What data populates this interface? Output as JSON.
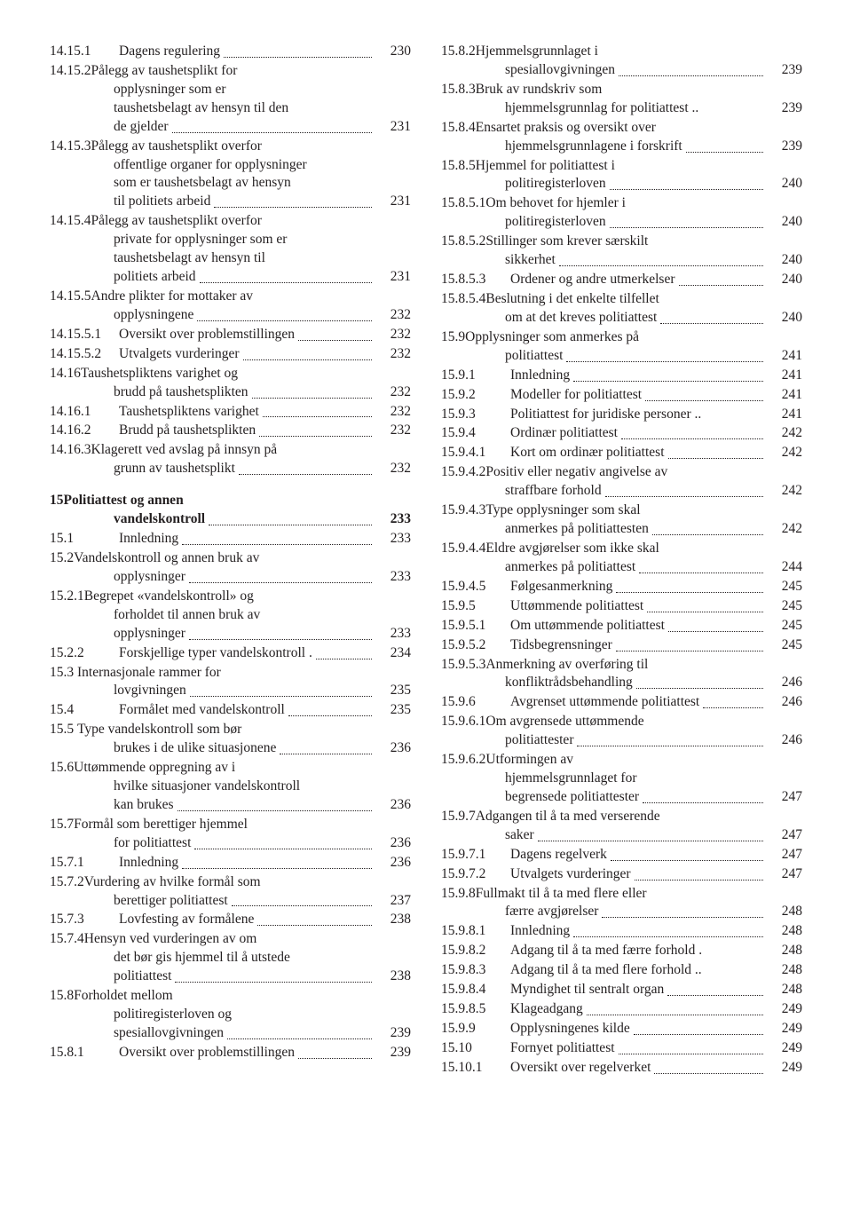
{
  "left": [
    {
      "n": "14.15.1",
      "t": "Dagens regulering",
      "p": "230"
    },
    {
      "n": "14.15.2",
      "lines": [
        "Pålegg av taushetsplikt for",
        "opplysninger som er",
        "taushetsbelagt av hensyn til den"
      ],
      "t": "de gjelder",
      "p": "231"
    },
    {
      "n": "14.15.3",
      "lines": [
        "Pålegg av taushetsplikt overfor",
        "offentlige organer for opplysninger",
        "som er taushetsbelagt av hensyn"
      ],
      "t": "til politiets arbeid",
      "p": "231"
    },
    {
      "n": "14.15.4",
      "lines": [
        "Pålegg av taushetsplikt overfor",
        "private for opplysninger som er",
        "taushetsbelagt av hensyn til"
      ],
      "t": "politiets arbeid",
      "p": "231"
    },
    {
      "n": "14.15.5",
      "lines": [
        "Andre plikter for mottaker av"
      ],
      "t": "opplysningene",
      "p": "232"
    },
    {
      "n": "14.15.5.1",
      "t": "Oversikt over problemstillingen",
      "p": "232",
      "tight": true
    },
    {
      "n": "14.15.5.2",
      "t": "Utvalgets vurderinger",
      "p": "232",
      "tight": true
    },
    {
      "n": "14.16",
      "lines": [
        "Taushetspliktens varighet og"
      ],
      "t": "brudd på taushetsplikten",
      "p": "232"
    },
    {
      "n": "14.16.1",
      "t": "Taushetspliktens varighet",
      "p": "232"
    },
    {
      "n": "14.16.2",
      "t": "Brudd på taushetsplikten",
      "p": "232"
    },
    {
      "n": "14.16.3",
      "lines": [
        "Klagerett ved avslag på innsyn på"
      ],
      "t": "grunn av taushetsplikt",
      "p": "232"
    },
    {
      "spacer": true
    },
    {
      "n": "15",
      "lines": [
        "Politiattest og annen"
      ],
      "t": "vandelskontroll",
      "p": "233",
      "bold": true
    },
    {
      "n": "15.1",
      "t": "Innledning",
      "p": "233"
    },
    {
      "n": "15.2",
      "lines": [
        "Vandelskontroll og annen bruk av"
      ],
      "t": "opplysninger",
      "p": "233"
    },
    {
      "n": "15.2.1",
      "lines": [
        "Begrepet «vandelskontroll» og",
        "forholdet til annen bruk av"
      ],
      "t": "opplysninger",
      "p": "233"
    },
    {
      "n": "15.2.2",
      "t": "Forskjellige typer vandelskontroll .",
      "p": "234"
    },
    {
      "n": "15.3",
      "lines": [
        " Internasjonale rammer for"
      ],
      "t": "lovgivningen",
      "p": "235"
    },
    {
      "n": "15.4",
      "t": "Formålet med vandelskontroll",
      "p": "235"
    },
    {
      "n": "15.5",
      "lines": [
        " Type vandelskontroll som bør"
      ],
      "t": "brukes i de ulike situasjonene",
      "p": "236"
    },
    {
      "n": "15.6",
      "lines": [
        "Uttømmende oppregning av i",
        "hvilke situasjoner vandelskontroll"
      ],
      "t": "kan brukes",
      "p": "236"
    },
    {
      "n": "15.7",
      "lines": [
        "Formål som berettiger hjemmel"
      ],
      "t": "for politiattest",
      "p": "236"
    },
    {
      "n": "15.7.1",
      "t": "Innledning",
      "p": "236"
    },
    {
      "n": "15.7.2",
      "lines": [
        "Vurdering av hvilke formål som"
      ],
      "t": "berettiger politiattest",
      "p": "237"
    },
    {
      "n": "15.7.3",
      "t": "Lovfesting av formålene",
      "p": "238"
    },
    {
      "n": "15.7.4",
      "lines": [
        "Hensyn ved vurderingen av om",
        "det bør gis hjemmel til å utstede"
      ],
      "t": "politiattest",
      "p": "238"
    },
    {
      "n": "15.8",
      "lines": [
        "Forholdet mellom",
        "politiregisterloven og"
      ],
      "t": "spesiallovgivningen",
      "p": "239"
    },
    {
      "n": "15.8.1",
      "t": "Oversikt over problemstillingen",
      "p": "239"
    }
  ],
  "right": [
    {
      "n": "15.8.2",
      "lines": [
        "Hjemmelsgrunnlaget i"
      ],
      "t": "spesiallovgivningen",
      "p": "239"
    },
    {
      "n": "15.8.3",
      "lines": [
        "Bruk av rundskriv som"
      ],
      "t": "hjemmelsgrunnlag for politiattest ..",
      "p": "239",
      "noleaders": true
    },
    {
      "n": "15.8.4",
      "lines": [
        "Ensartet praksis og oversikt over"
      ],
      "t": "hjemmelsgrunnlagene i forskrift",
      "p": "239"
    },
    {
      "n": "15.8.5",
      "lines": [
        "Hjemmel for politiattest i"
      ],
      "t": "politiregisterloven",
      "p": "240"
    },
    {
      "n": "15.8.5.1",
      "lines": [
        "Om behovet for hjemler i"
      ],
      "t": "politiregisterloven",
      "p": "240"
    },
    {
      "n": "15.8.5.2",
      "lines": [
        "Stillinger som krever særskilt"
      ],
      "t": "sikkerhet",
      "p": "240"
    },
    {
      "n": "15.8.5.3",
      "t": "Ordener og andre utmerkelser",
      "p": "240"
    },
    {
      "n": "15.8.5.4",
      "lines": [
        "Beslutning i det enkelte tilfellet"
      ],
      "t": "om at det kreves politiattest",
      "p": "240"
    },
    {
      "n": "15.9",
      "lines": [
        "Opplysninger som anmerkes på"
      ],
      "t": "politiattest",
      "p": "241"
    },
    {
      "n": "15.9.1",
      "t": "Innledning",
      "p": "241"
    },
    {
      "n": "15.9.2",
      "t": "Modeller for politiattest",
      "p": "241"
    },
    {
      "n": "15.9.3",
      "t": "Politiattest for juridiske personer ..",
      "p": "241",
      "noleaders": true
    },
    {
      "n": "15.9.4",
      "t": "Ordinær politiattest",
      "p": "242"
    },
    {
      "n": "15.9.4.1",
      "t": "Kort om ordinær politiattest",
      "p": "242"
    },
    {
      "n": "15.9.4.2",
      "lines": [
        "Positiv eller negativ angivelse av"
      ],
      "t": "straffbare forhold",
      "p": "242"
    },
    {
      "n": "15.9.4.3",
      "lines": [
        "Type opplysninger som skal"
      ],
      "t": "anmerkes på politiattesten",
      "p": "242"
    },
    {
      "n": "15.9.4.4",
      "lines": [
        "Eldre avgjørelser som ikke skal"
      ],
      "t": "anmerkes på politiattest",
      "p": "244"
    },
    {
      "n": "15.9.4.5",
      "t": "Følgesanmerkning",
      "p": "245"
    },
    {
      "n": "15.9.5",
      "t": "Uttømmende politiattest",
      "p": "245"
    },
    {
      "n": "15.9.5.1",
      "t": "Om uttømmende politiattest",
      "p": "245"
    },
    {
      "n": "15.9.5.2",
      "t": "Tidsbegrensninger",
      "p": "245"
    },
    {
      "n": "15.9.5.3",
      "lines": [
        "Anmerkning av overføring til"
      ],
      "t": "konfliktrådsbehandling",
      "p": "246"
    },
    {
      "n": "15.9.6",
      "t": "Avgrenset uttømmende politiattest",
      "p": "246"
    },
    {
      "n": "15.9.6.1",
      "lines": [
        "Om avgrensede uttømmende"
      ],
      "t": "politiattester",
      "p": "246"
    },
    {
      "n": "15.9.6.2",
      "lines": [
        "Utformingen av",
        "hjemmelsgrunnlaget for"
      ],
      "t": "begrensede politiattester",
      "p": "247"
    },
    {
      "n": "15.9.7",
      "lines": [
        "Adgangen til å ta med verserende"
      ],
      "t": "saker",
      "p": "247"
    },
    {
      "n": "15.9.7.1",
      "t": "Dagens regelverk",
      "p": "247"
    },
    {
      "n": "15.9.7.2",
      "t": "Utvalgets vurderinger",
      "p": "247"
    },
    {
      "n": "15.9.8",
      "lines": [
        "Fullmakt til å ta med flere eller"
      ],
      "t": "færre avgjørelser",
      "p": "248"
    },
    {
      "n": "15.9.8.1",
      "t": "Innledning",
      "p": "248"
    },
    {
      "n": "15.9.8.2",
      "t": "Adgang til å ta med færre forhold .",
      "p": "248",
      "noleaders": true
    },
    {
      "n": "15.9.8.3",
      "t": "Adgang til å ta med flere forhold ..",
      "p": "248",
      "noleaders": true
    },
    {
      "n": "15.9.8.4",
      "t": "Myndighet til sentralt organ",
      "p": "248"
    },
    {
      "n": "15.9.8.5",
      "t": "Klageadgang",
      "p": "249"
    },
    {
      "n": "15.9.9",
      "t": "Opplysningenes kilde",
      "p": "249"
    },
    {
      "n": "15.10",
      "t": "Fornyet politiattest",
      "p": "249"
    },
    {
      "n": "15.10.1",
      "t": "Oversikt over regelverket",
      "p": "249"
    }
  ]
}
